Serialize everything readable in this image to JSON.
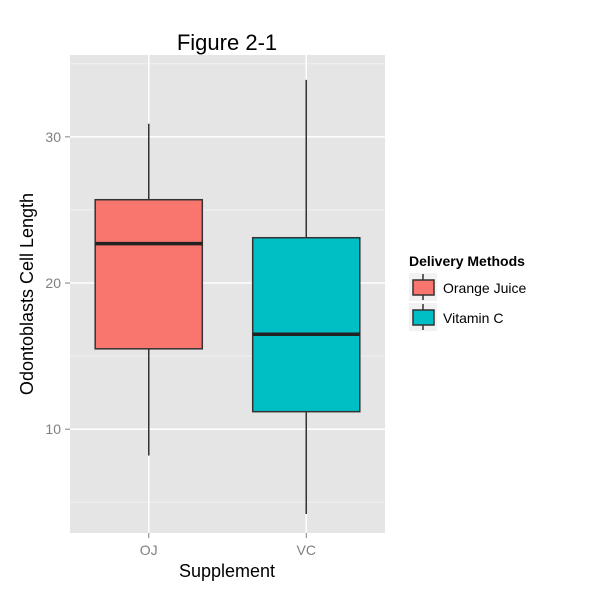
{
  "chart_data": {
    "type": "box",
    "title": "Figure 2-1",
    "xlabel": "Supplement",
    "ylabel": "Odontoblasts Cell Length",
    "categories": [
      "OJ",
      "VC"
    ],
    "ylim": [
      2.9,
      35.6
    ],
    "yticks": [
      10,
      20,
      30
    ],
    "grid": true,
    "series": [
      {
        "name": "Orange Juice",
        "category": "OJ",
        "color": "#F8766D",
        "min": 8.2,
        "q1": 15.5,
        "median": 22.7,
        "q3": 25.7,
        "max": 30.9
      },
      {
        "name": "Vitamin C",
        "category": "VC",
        "color": "#00BFC4",
        "min": 4.2,
        "q1": 11.2,
        "median": 16.5,
        "q3": 23.1,
        "max": 33.9
      }
    ],
    "legend": {
      "title": "Delivery Methods",
      "position": "right"
    }
  }
}
